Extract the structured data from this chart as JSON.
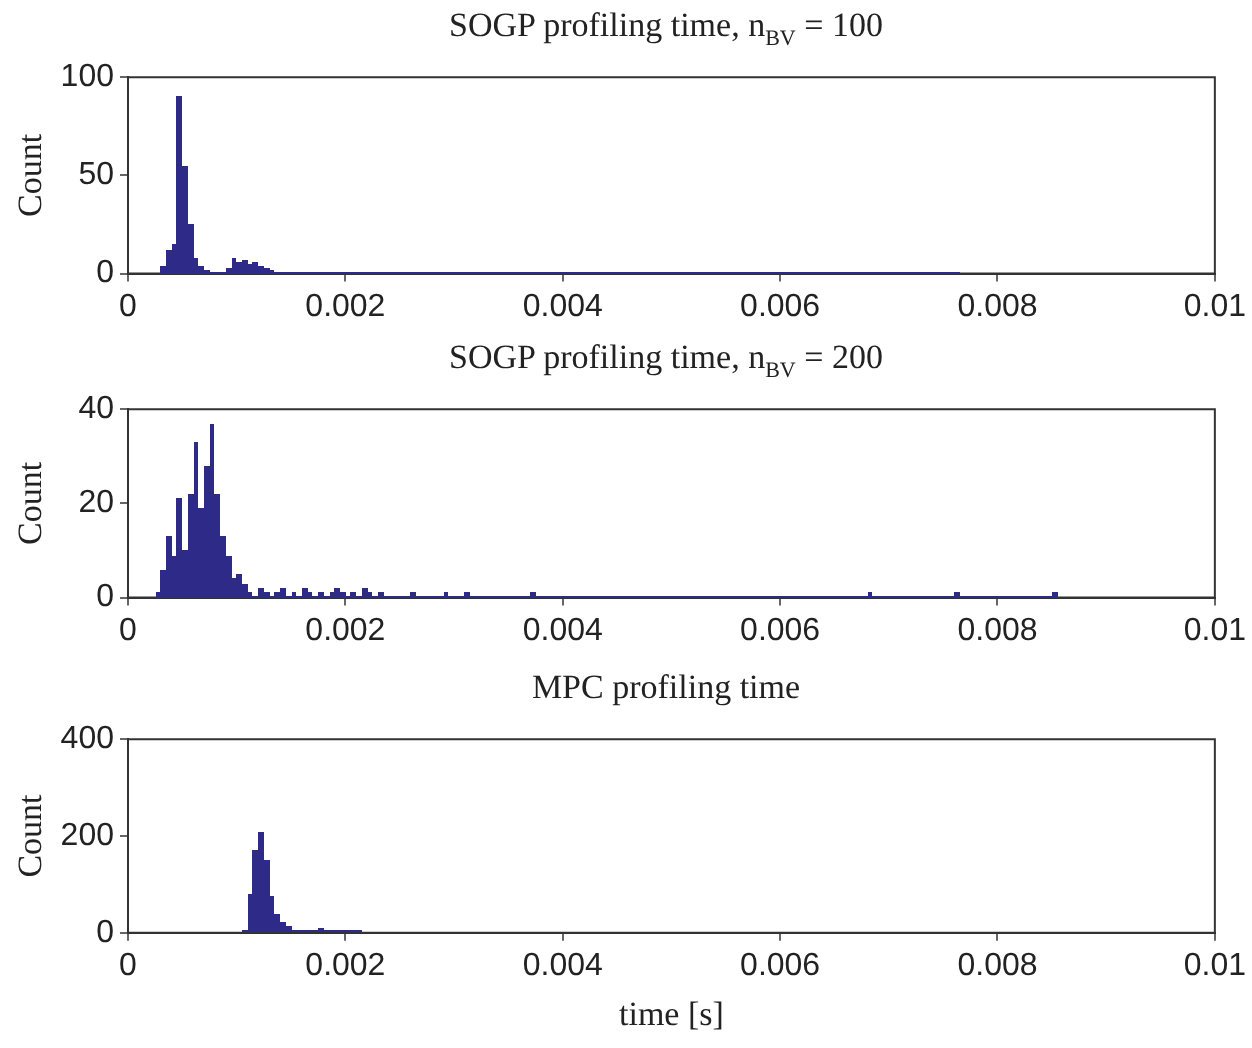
{
  "chart_data": [
    {
      "type": "histogram",
      "title": "SOGP profiling time, n$_{BV}$ = 100",
      "ylabel": "Count",
      "color": "#2e2a87",
      "bins": [
        0.0003,
        0.00035,
        0.0004,
        0.00045,
        0.0005,
        0.00055,
        0.0006,
        0.00065,
        0.0007,
        0.00075,
        0.0008,
        0.00085,
        0.0009,
        0.00095,
        0.001,
        0.00105,
        0.0011,
        0.00115,
        0.0012,
        0.00125,
        0.0013,
        0.00135,
        0.0017,
        0.00175,
        0.0021,
        0.00215,
        0.0026,
        0.00265,
        0.0029,
        0.00295,
        0.0034,
        0.00345,
        0.004,
        0.00405,
        0.0047,
        0.00475,
        0.0052,
        0.00525,
        0.0064,
        0.00645,
        0.0076,
        0.00765
      ],
      "values": [
        4,
        12,
        15,
        90,
        55,
        25,
        8,
        4,
        2,
        1,
        0,
        1,
        3,
        8,
        6,
        7,
        5,
        6,
        4,
        3,
        2,
        0,
        1,
        0,
        1,
        0,
        1,
        0,
        1,
        0,
        1,
        0,
        1,
        0,
        1,
        0,
        1,
        0,
        1,
        0,
        1
      ],
      "xlim": [
        0,
        0.01
      ],
      "xticks": [
        0,
        0.002,
        0.004,
        0.006,
        0.008,
        0.01
      ],
      "ylim": [
        0,
        100
      ],
      "yticks": [
        0,
        50,
        100
      ]
    },
    {
      "type": "histogram",
      "title": "SOGP profiling time, n$_{BV}$ = 200",
      "ylabel": "Count",
      "color": "#2e2a87",
      "bins": [
        0.00025,
        0.0003,
        0.00035,
        0.0004,
        0.00045,
        0.0005,
        0.00055,
        0.0006,
        0.00065,
        0.0007,
        0.00075,
        0.0008,
        0.00085,
        0.0009,
        0.00095,
        0.001,
        0.00105,
        0.0011,
        0.00115,
        0.0012,
        0.00125,
        0.0013,
        0.00135,
        0.0014,
        0.00145,
        0.0015,
        0.00155,
        0.0016,
        0.00165,
        0.0017,
        0.00175,
        0.0018,
        0.00185,
        0.0019,
        0.00195,
        0.002,
        0.00205,
        0.0021,
        0.00215,
        0.0022,
        0.00225,
        0.0023,
        0.00235,
        0.0026,
        0.00265,
        0.0029,
        0.00295,
        0.0031,
        0.00315,
        0.0037,
        0.00375,
        0.0068,
        0.00685,
        0.0076,
        0.00765,
        0.0085,
        0.00855
      ],
      "values": [
        1,
        6,
        13,
        9,
        21,
        10,
        22,
        33,
        19,
        28,
        37,
        22,
        13,
        9,
        4,
        5,
        3,
        1,
        0,
        2,
        1,
        0,
        1,
        2,
        0,
        1,
        0,
        2,
        1,
        0,
        1,
        0,
        1,
        2,
        1,
        0,
        1,
        0,
        2,
        1,
        0,
        1,
        0,
        1,
        0,
        1,
        0,
        1,
        0,
        1,
        0,
        1,
        0,
        1,
        0,
        1
      ],
      "xlim": [
        0,
        0.01
      ],
      "xticks": [
        0,
        0.002,
        0.004,
        0.006,
        0.008,
        0.01
      ],
      "ylim": [
        0,
        40
      ],
      "yticks": [
        0,
        20,
        40
      ]
    },
    {
      "type": "histogram",
      "title": "MPC profiling time",
      "ylabel": "Count",
      "xlabel": "time [s]",
      "color": "#2e2a87",
      "bins": [
        0.00105,
        0.0011,
        0.00115,
        0.0012,
        0.00125,
        0.0013,
        0.00135,
        0.0014,
        0.00145,
        0.0015,
        0.00155,
        0.0016,
        0.00165,
        0.0017,
        0.00175,
        0.0018,
        0.00185,
        0.0019,
        0.00195,
        0.002,
        0.00205,
        0.0021,
        0.00215
      ],
      "values": [
        6,
        80,
        172,
        208,
        150,
        75,
        40,
        21,
        12,
        6,
        3,
        6,
        4,
        5,
        8,
        4,
        6,
        4,
        5,
        4,
        0,
        4
      ],
      "xlim": [
        0,
        0.01
      ],
      "xticks": [
        0,
        0.002,
        0.004,
        0.006,
        0.008,
        0.01
      ],
      "ylim": [
        0,
        400
      ],
      "yticks": [
        0,
        200,
        400
      ]
    }
  ]
}
